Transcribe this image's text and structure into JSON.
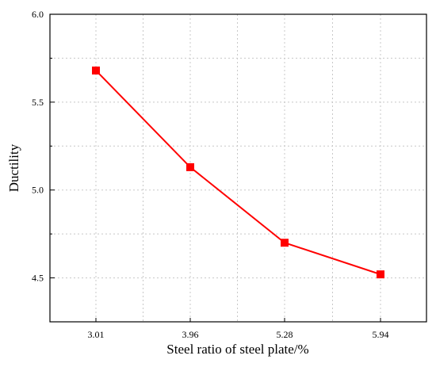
{
  "chart_data": {
    "type": "line",
    "title": "",
    "xlabel": "Steel ratio of steel plate/%",
    "ylabel": "Ductility",
    "categories": [
      "3.01",
      "3.96",
      "5.28",
      "5.94"
    ],
    "series": [
      {
        "values": [
          5.68,
          5.13,
          4.7,
          4.52
        ],
        "color": "#ff0000",
        "marker": "square"
      }
    ],
    "ylim": [
      4.25,
      6.0
    ],
    "yticks": [
      4.5,
      5.0,
      5.5,
      6.0
    ],
    "ytick_labels": [
      "4.5",
      "5.0",
      "5.5",
      "6.0"
    ],
    "grid": true,
    "legend": "none"
  }
}
